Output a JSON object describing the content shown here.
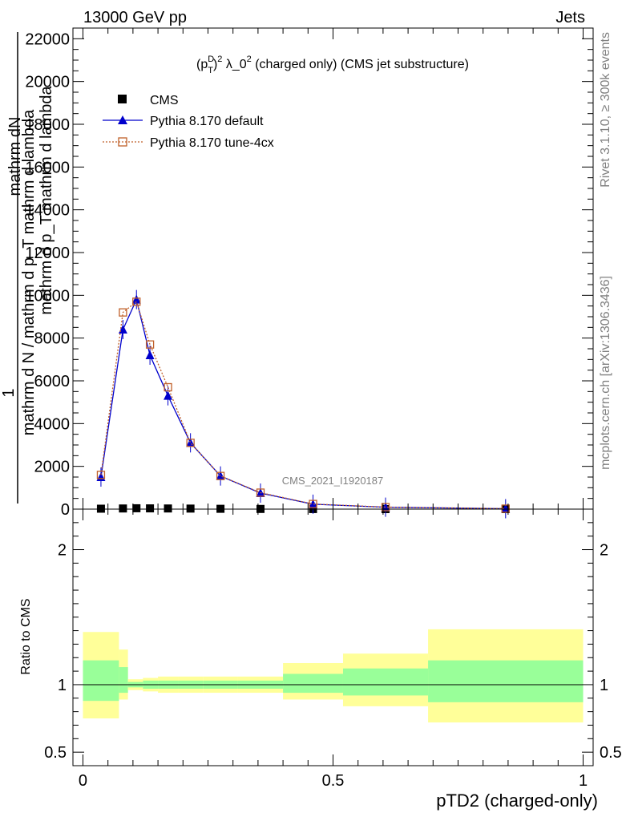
{
  "header": {
    "left": "13000 GeV pp",
    "right": "Jets"
  },
  "side_labels": {
    "rivet": "Rivet 3.1.10, ≥ 300k events",
    "mcplots": "mcplots.cern.ch [arXiv:1306.3436]"
  },
  "chart_data": [
    {
      "type": "line",
      "title_parts": {
        "base": "(p",
        "sup": "D",
        "sub": "T",
        "after": ")",
        "sup2": "2",
        "mid": " λ_0",
        "sup3": "2",
        "end": " (charged only) (CMS jet substructure)"
      },
      "ylabel_lines": [
        "mathrm dN",
        "1",
        "mathrm d N / mathrm d p_T mathrm d lambda",
        "mathrm d p_T mathrm d lambda"
      ],
      "ylim": [
        0,
        22500
      ],
      "y_ticks": [
        0,
        2000,
        4000,
        6000,
        8000,
        10000,
        12000,
        14000,
        16000,
        18000,
        20000,
        22000
      ],
      "y_tick_labels": [
        "0",
        "2000",
        "4000",
        "6000",
        "8000",
        "10000",
        "12000",
        "14000",
        "16000",
        "18000",
        "20000",
        "22000"
      ],
      "xlim": [
        -0.02,
        1.02
      ],
      "watermark": "CMS_2021_I1920187",
      "legend_position": "top-left",
      "series": [
        {
          "name": "CMS",
          "color": "#000000",
          "marker": "square",
          "x": [
            0.036,
            0.08,
            0.107,
            0.134,
            0.17,
            0.215,
            0.275,
            0.355,
            0.46,
            0.605,
            0.845
          ],
          "y": [
            20,
            30,
            40,
            35,
            30,
            25,
            15,
            8,
            3,
            1,
            0.5
          ]
        },
        {
          "name": "Pythia 8.170 default",
          "color": "#0000cc",
          "marker": "triangle",
          "x": [
            0.036,
            0.08,
            0.107,
            0.134,
            0.17,
            0.215,
            0.275,
            0.355,
            0.46,
            0.605,
            0.845
          ],
          "y": [
            1500,
            8400,
            9800,
            7200,
            5300,
            3100,
            1550,
            750,
            230,
            90,
            20
          ]
        },
        {
          "name": "Pythia 8.170 tune-4cx",
          "color": "#c0602a",
          "marker": "open-square",
          "x": [
            0.036,
            0.08,
            0.107,
            0.134,
            0.17,
            0.215,
            0.275,
            0.355,
            0.46,
            0.605,
            0.845
          ],
          "y": [
            1600,
            9200,
            9700,
            7700,
            5700,
            3100,
            1550,
            770,
            240,
            95,
            22
          ]
        }
      ]
    },
    {
      "type": "area",
      "ylabel": "Ratio to CMS",
      "ylim": [
        0.4,
        2.3
      ],
      "y_ticks": [
        0.5,
        1,
        2
      ],
      "y_tick_labels": [
        "0.5",
        "1",
        "2"
      ],
      "xlabel": "pTD2 (charged-only)",
      "x_ticks": [
        0,
        0.5,
        1
      ],
      "x_tick_labels": [
        "0",
        "0.5",
        "1"
      ],
      "bands": {
        "edges": [
          0,
          0.072,
          0.09,
          0.12,
          0.15,
          0.19,
          0.24,
          0.31,
          0.4,
          0.52,
          0.69,
          1.0
        ],
        "yellow_lo": [
          0.75,
          0.89,
          0.96,
          0.95,
          0.94,
          0.94,
          0.94,
          0.94,
          0.89,
          0.84,
          0.72
        ],
        "yellow_hi": [
          1.39,
          1.26,
          1.04,
          1.05,
          1.06,
          1.06,
          1.06,
          1.06,
          1.16,
          1.23,
          1.41
        ],
        "green_lo": [
          0.88,
          0.94,
          0.98,
          0.97,
          0.97,
          0.97,
          0.97,
          0.97,
          0.94,
          0.92,
          0.87
        ],
        "green_hi": [
          1.18,
          1.13,
          1.02,
          1.03,
          1.03,
          1.03,
          1.03,
          1.03,
          1.08,
          1.12,
          1.18
        ]
      },
      "colors": {
        "yellow": "#ffff99",
        "green": "#99ff99"
      }
    }
  ]
}
